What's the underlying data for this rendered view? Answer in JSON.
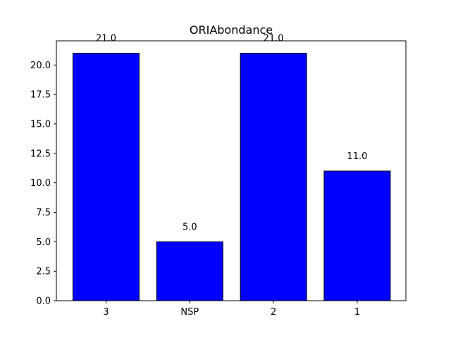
{
  "chart_data": {
    "type": "bar",
    "title": "ORIAbondance",
    "xlabel": "",
    "ylabel": "",
    "categories": [
      "3",
      "NSP",
      "2",
      "1"
    ],
    "values": [
      21.0,
      5.0,
      21.0,
      11.0
    ],
    "data_labels": [
      "21.0",
      "5.0",
      "21.0",
      "11.0"
    ],
    "ylim": [
      0,
      22.05
    ],
    "yticks": [
      0.0,
      2.5,
      5.0,
      7.5,
      10.0,
      12.5,
      15.0,
      17.5,
      20.0
    ],
    "ytick_labels": [
      "0.0",
      "2.5",
      "5.0",
      "7.5",
      "10.0",
      "12.5",
      "15.0",
      "17.5",
      "20.0"
    ],
    "grid": false,
    "legend": "none",
    "colors": {
      "bar_fill": "#0000ff",
      "bar_edge": "#000000",
      "axes": "#000000",
      "background": "#ffffff"
    }
  }
}
